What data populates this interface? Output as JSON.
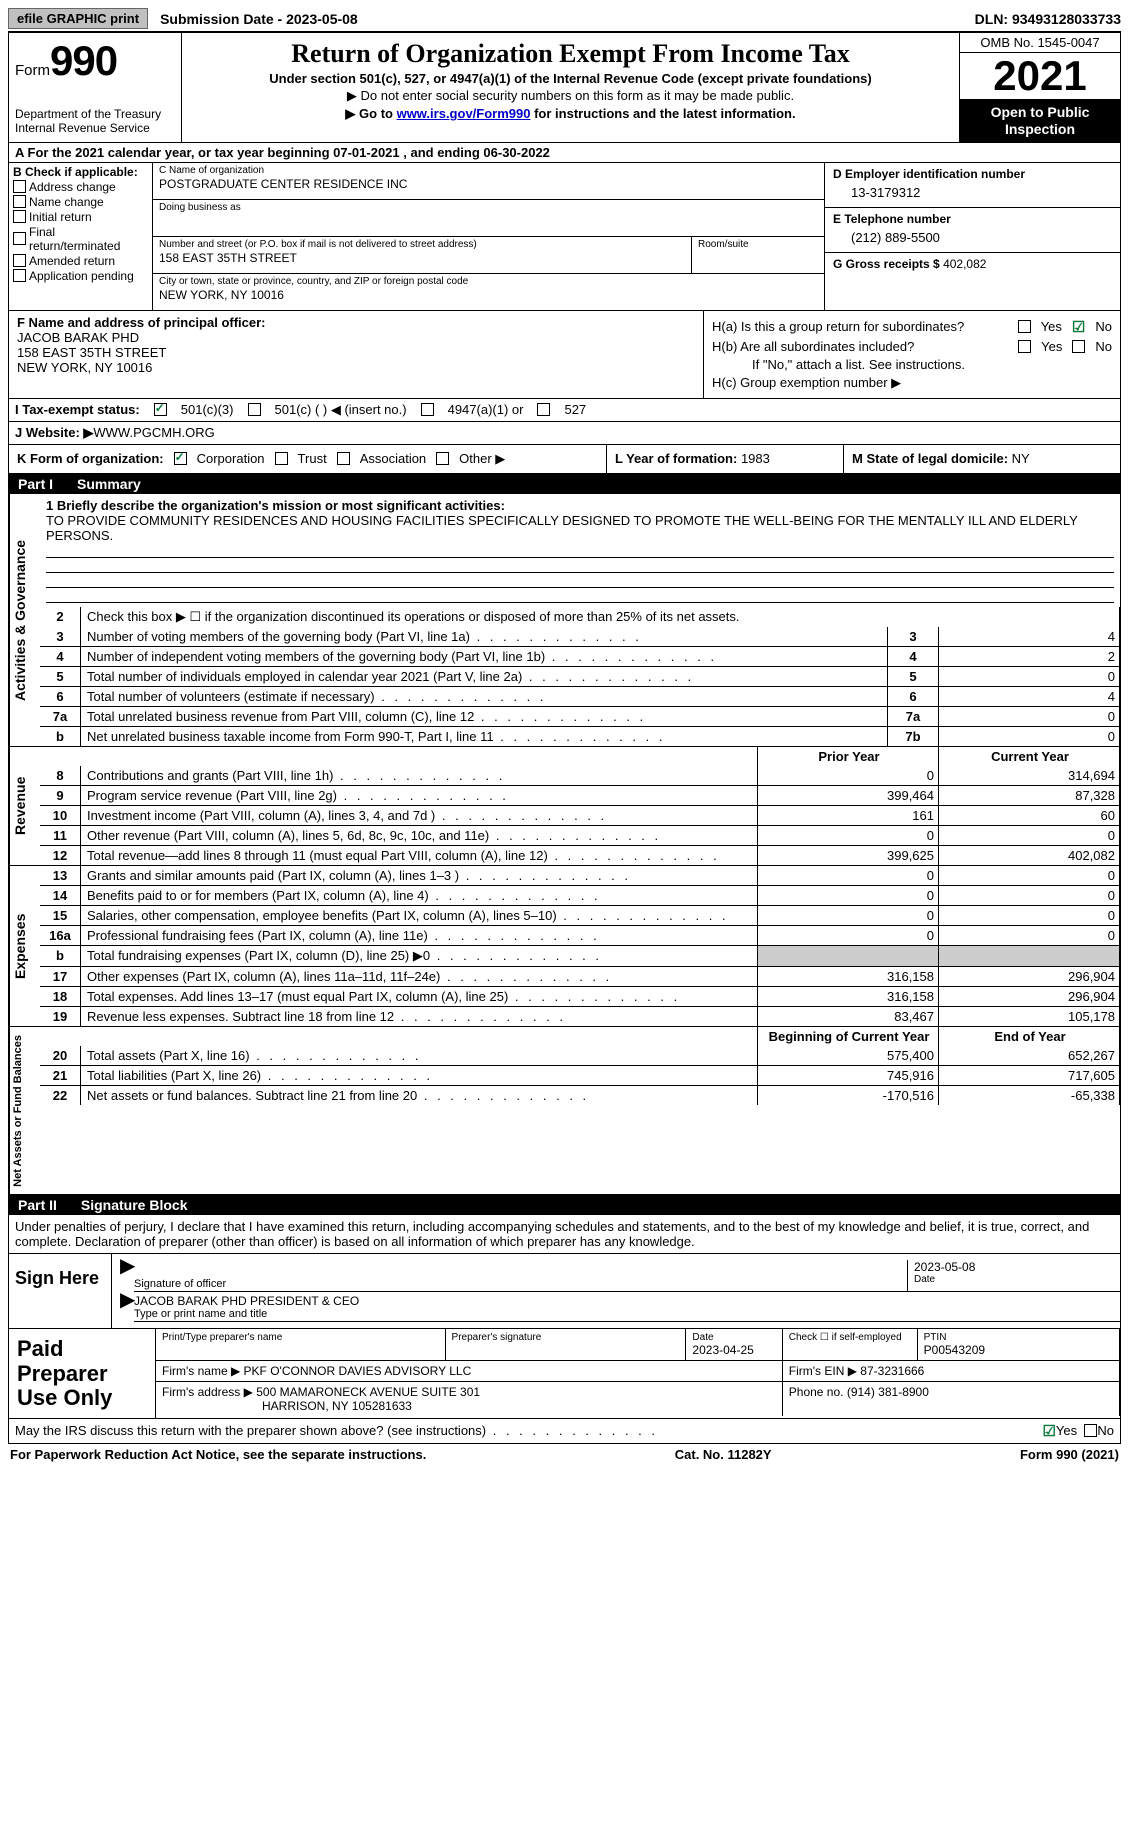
{
  "top": {
    "efile": "efile GRAPHIC print",
    "sub_date": "Submission Date - 2023-05-08",
    "dln": "DLN: 93493128033733"
  },
  "header": {
    "form_word": "Form",
    "form_num": "990",
    "dept": "Department of the Treasury\nInternal Revenue Service",
    "title": "Return of Organization Exempt From Income Tax",
    "sub1": "Under section 501(c), 527, or 4947(a)(1) of the Internal Revenue Code (except private foundations)",
    "sub2": "▶ Do not enter social security numbers on this form as it may be made public.",
    "sub3a": "▶ Go to ",
    "sub3_link": "www.irs.gov/Form990",
    "sub3b": " for instructions and the latest information.",
    "omb": "OMB No. 1545-0047",
    "year": "2021",
    "open": "Open to Public Inspection"
  },
  "lineA": "A For the 2021 calendar year, or tax year beginning 07-01-2021    , and ending 06-30-2022",
  "boxB": {
    "title": "B Check if applicable:",
    "items": [
      "Address change",
      "Name change",
      "Initial return",
      "Final return/terminated",
      "Amended return",
      "Application pending"
    ]
  },
  "boxC": {
    "name_lbl": "C Name of organization",
    "name": "POSTGRADUATE CENTER RESIDENCE INC",
    "dba_lbl": "Doing business as",
    "dba": "",
    "street_lbl": "Number and street (or P.O. box if mail is not delivered to street address)",
    "room_lbl": "Room/suite",
    "street": "158 EAST 35TH STREET",
    "city_lbl": "City or town, state or province, country, and ZIP or foreign postal code",
    "city": "NEW YORK, NY  10016"
  },
  "boxD": {
    "ein_lbl": "D Employer identification number",
    "ein": "13-3179312",
    "tel_lbl": "E Telephone number",
    "tel": "(212) 889-5500",
    "gross_lbl": "G Gross receipts $",
    "gross": "402,082"
  },
  "boxF": {
    "lbl": "F Name and address of principal officer:",
    "name": "JACOB BARAK PHD",
    "addr1": "158 EAST 35TH STREET",
    "addr2": "NEW YORK, NY  10016"
  },
  "boxH": {
    "a": "H(a)  Is this a group return for subordinates?",
    "b": "H(b)  Are all subordinates included?",
    "b_note": "If \"No,\" attach a list. See instructions.",
    "c": "H(c)  Group exemption number ▶",
    "yes": "Yes",
    "no": "No"
  },
  "taxI": {
    "lbl": "I    Tax-exempt status:",
    "o1": "501(c)(3)",
    "o2": "501(c) (  ) ◀ (insert no.)",
    "o3": "4947(a)(1) or",
    "o4": "527"
  },
  "webJ": {
    "lbl": "J   Website: ▶",
    "val": " WWW.PGCMH.ORG"
  },
  "rowK": {
    "lbl": "K Form of organization:",
    "o1": "Corporation",
    "o2": "Trust",
    "o3": "Association",
    "o4": "Other ▶",
    "l_lbl": "L Year of formation: ",
    "l_val": "1983",
    "m_lbl": "M State of legal domicile: ",
    "m_val": "NY"
  },
  "part1": {
    "part": "Part I",
    "title": "Summary"
  },
  "summary": {
    "s1_lbl": "1   Briefly describe the organization's mission or most significant activities:",
    "s1_val": "TO PROVIDE COMMUNITY RESIDENCES AND HOUSING FACILITIES SPECIFICALLY DESIGNED TO PROMOTE THE WELL-BEING FOR THE MENTALLY ILL AND ELDERLY PERSONS.",
    "s2": "Check this box ▶ ☐ if the organization discontinued its operations or disposed of more than 25% of its net assets.",
    "rows_gov": [
      {
        "n": "3",
        "d": "Number of voting members of the governing body (Part VI, line 1a)",
        "box": "3",
        "v": "4"
      },
      {
        "n": "4",
        "d": "Number of independent voting members of the governing body (Part VI, line 1b)",
        "box": "4",
        "v": "2"
      },
      {
        "n": "5",
        "d": "Total number of individuals employed in calendar year 2021 (Part V, line 2a)",
        "box": "5",
        "v": "0"
      },
      {
        "n": "6",
        "d": "Total number of volunteers (estimate if necessary)",
        "box": "6",
        "v": "4"
      },
      {
        "n": "7a",
        "d": "Total unrelated business revenue from Part VIII, column (C), line 12",
        "box": "7a",
        "v": "0"
      },
      {
        "n": "b",
        "d": "Net unrelated business taxable income from Form 990-T, Part I, line 11",
        "box": "7b",
        "v": "0"
      }
    ],
    "hdr_prior": "Prior Year",
    "hdr_curr": "Current Year",
    "rows_rev": [
      {
        "n": "8",
        "d": "Contributions and grants (Part VIII, line 1h)",
        "p": "0",
        "c": "314,694"
      },
      {
        "n": "9",
        "d": "Program service revenue (Part VIII, line 2g)",
        "p": "399,464",
        "c": "87,328"
      },
      {
        "n": "10",
        "d": "Investment income (Part VIII, column (A), lines 3, 4, and 7d )",
        "p": "161",
        "c": "60"
      },
      {
        "n": "11",
        "d": "Other revenue (Part VIII, column (A), lines 5, 6d, 8c, 9c, 10c, and 11e)",
        "p": "0",
        "c": "0"
      },
      {
        "n": "12",
        "d": "Total revenue—add lines 8 through 11 (must equal Part VIII, column (A), line 12)",
        "p": "399,625",
        "c": "402,082"
      }
    ],
    "rows_exp": [
      {
        "n": "13",
        "d": "Grants and similar amounts paid (Part IX, column (A), lines 1–3 )",
        "p": "0",
        "c": "0"
      },
      {
        "n": "14",
        "d": "Benefits paid to or for members (Part IX, column (A), line 4)",
        "p": "0",
        "c": "0"
      },
      {
        "n": "15",
        "d": "Salaries, other compensation, employee benefits (Part IX, column (A), lines 5–10)",
        "p": "0",
        "c": "0"
      },
      {
        "n": "16a",
        "d": "Professional fundraising fees (Part IX, column (A), line 11e)",
        "p": "0",
        "c": "0"
      },
      {
        "n": "b",
        "d": "Total fundraising expenses (Part IX, column (D), line 25) ▶0",
        "p": "",
        "c": "",
        "gray": true
      },
      {
        "n": "17",
        "d": "Other expenses (Part IX, column (A), lines 11a–11d, 11f–24e)",
        "p": "316,158",
        "c": "296,904"
      },
      {
        "n": "18",
        "d": "Total expenses. Add lines 13–17 (must equal Part IX, column (A), line 25)",
        "p": "316,158",
        "c": "296,904"
      },
      {
        "n": "19",
        "d": "Revenue less expenses. Subtract line 18 from line 12",
        "p": "83,467",
        "c": "105,178"
      }
    ],
    "hdr_beg": "Beginning of Current Year",
    "hdr_end": "End of Year",
    "rows_net": [
      {
        "n": "20",
        "d": "Total assets (Part X, line 16)",
        "p": "575,400",
        "c": "652,267"
      },
      {
        "n": "21",
        "d": "Total liabilities (Part X, line 26)",
        "p": "745,916",
        "c": "717,605"
      },
      {
        "n": "22",
        "d": "Net assets or fund balances. Subtract line 21 from line 20",
        "p": "-170,516",
        "c": "-65,338"
      }
    ],
    "side_gov": "Activities & Governance",
    "side_rev": "Revenue",
    "side_exp": "Expenses",
    "side_net": "Net Assets or Fund Balances"
  },
  "part2": {
    "part": "Part II",
    "title": "Signature Block"
  },
  "sig": {
    "decl": "Under penalties of perjury, I declare that I have examined this return, including accompanying schedules and statements, and to the best of my knowledge and belief, it is true, correct, and complete. Declaration of preparer (other than officer) is based on all information of which preparer has any knowledge.",
    "sign_here": "Sign Here",
    "sig_lbl": "Signature of officer",
    "date_val": "2023-05-08",
    "date_lbl": "Date",
    "name_val": "JACOB BARAK PHD  PRESIDENT & CEO",
    "name_lbl": "Type or print name and title"
  },
  "prep": {
    "label": "Paid Preparer Use Only",
    "r1": {
      "name_lbl": "Print/Type preparer's name",
      "sig_lbl": "Preparer's signature",
      "date_lbl": "Date",
      "date": "2023-04-25",
      "check_lbl": "Check ☐ if self-employed",
      "ptin_lbl": "PTIN",
      "ptin": "P00543209"
    },
    "r2": {
      "firm_lbl": "Firm's name    ▶",
      "firm": "PKF O'CONNOR DAVIES ADVISORY LLC",
      "ein_lbl": "Firm's EIN ▶",
      "ein": "87-3231666"
    },
    "r3": {
      "addr_lbl": "Firm's address ▶",
      "addr1": "500 MAMARONECK AVENUE SUITE 301",
      "addr2": "HARRISON, NY  105281633",
      "phone_lbl": "Phone no.",
      "phone": "(914) 381-8900"
    }
  },
  "discuss": {
    "q": "May the IRS discuss this return with the preparer shown above? (see instructions)",
    "yes": "Yes",
    "no": "No"
  },
  "footer": {
    "l": "For Paperwork Reduction Act Notice, see the separate instructions.",
    "c": "Cat. No. 11282Y",
    "r": "Form 990 (2021)"
  }
}
